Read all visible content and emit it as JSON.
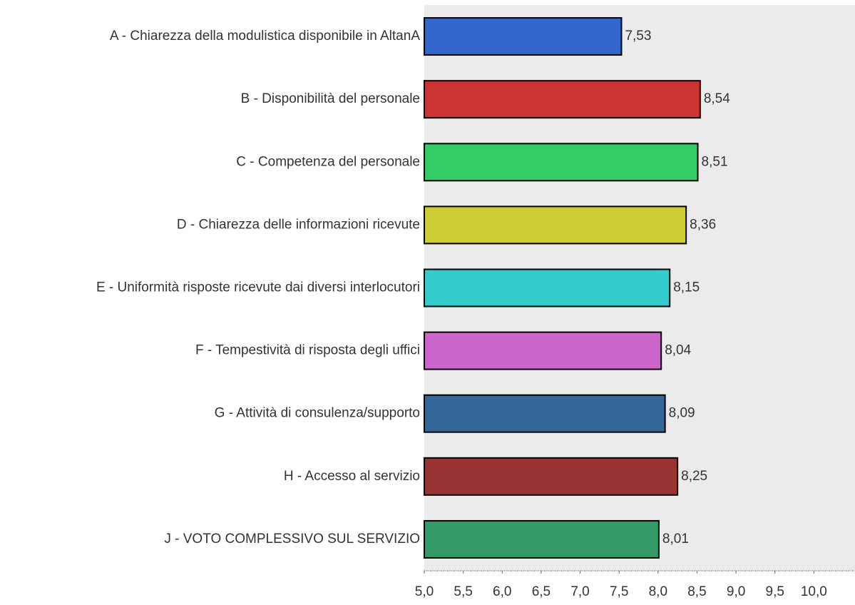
{
  "chart_data": {
    "type": "bar",
    "orientation": "horizontal",
    "categories": [
      "A - Chiarezza della modulistica disponibile in AltanA",
      "B - Disponibilità del personale",
      "C - Competenza del personale",
      "D - Chiarezza delle informazioni ricevute",
      "E - Uniformità risposte ricevute dai diversi interlocutori",
      "F - Tempestività di risposta degli uffici",
      "G - Attività di consulenza/supporto",
      "H - Accesso al servizio",
      "J - VOTO COMPLESSIVO SUL SERVIZIO"
    ],
    "values": [
      7.53,
      8.54,
      8.51,
      8.36,
      8.15,
      8.04,
      8.09,
      8.25,
      8.01
    ],
    "value_labels": [
      "7,53",
      "8,54",
      "8,51",
      "8,36",
      "8,15",
      "8,04",
      "8,09",
      "8,25",
      "8,01"
    ],
    "colors": [
      "#3366cc",
      "#cc3333",
      "#33cc66",
      "#cccc33",
      "#33cccc",
      "#cc66cc",
      "#336699",
      "#993333",
      "#339966"
    ],
    "xlim": [
      5,
      10.5
    ],
    "xticks": [
      {
        "value": 5,
        "label": "5,0"
      },
      {
        "value": 5.5,
        "label": "5,5"
      },
      {
        "value": 6,
        "label": "6,0"
      },
      {
        "value": 6.5,
        "label": "6,5"
      },
      {
        "value": 7,
        "label": "7,0"
      },
      {
        "value": 7.5,
        "label": "7,5"
      },
      {
        "value": 8,
        "label": "8,0"
      },
      {
        "value": 8.5,
        "label": "8,5"
      },
      {
        "value": 9,
        "label": "9,0"
      },
      {
        "value": 9.5,
        "label": "9,5"
      },
      {
        "value": 10,
        "label": "10,0"
      }
    ]
  }
}
